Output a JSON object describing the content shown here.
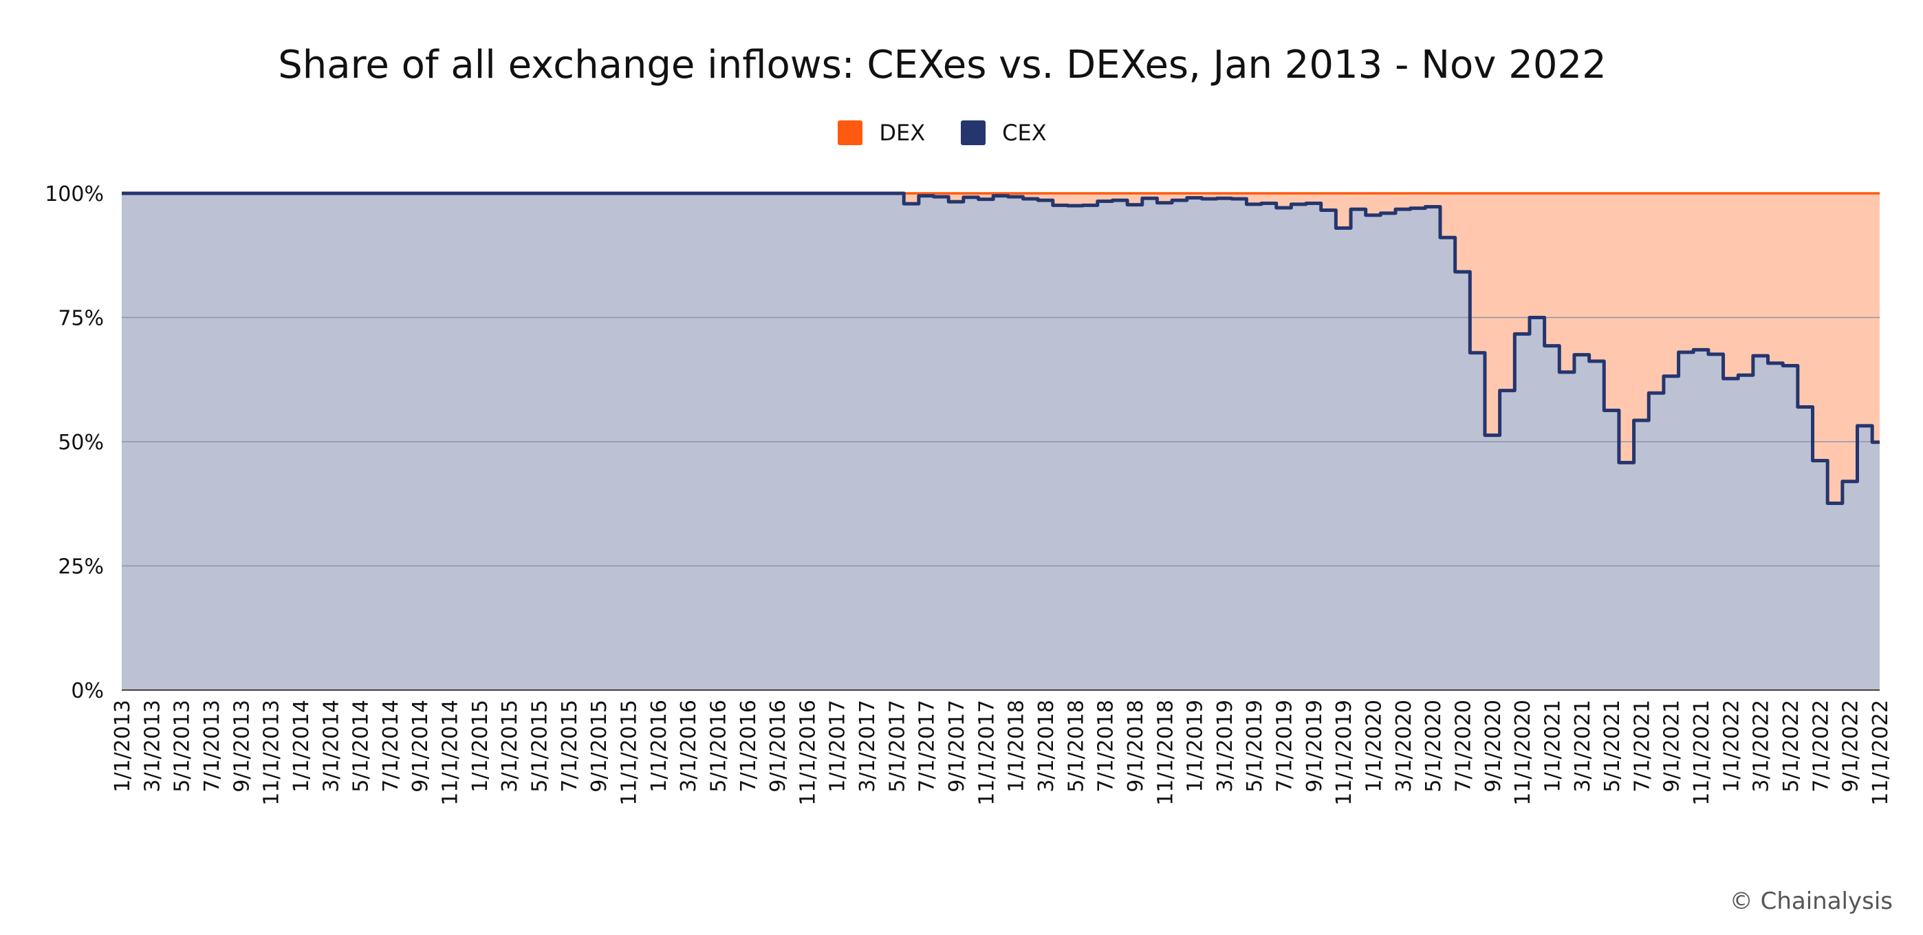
{
  "chart_data": {
    "type": "area",
    "title": "Share of all exchange inflows: CEXes vs. DEXes, Jan 2013 - Nov 2022",
    "xlabel": "",
    "ylabel": "",
    "ylim": [
      0,
      100
    ],
    "y_ticks": [
      "0%",
      "25%",
      "50%",
      "75%",
      "100%"
    ],
    "y_tick_values": [
      0,
      25,
      50,
      75,
      100
    ],
    "stacked": true,
    "step": true,
    "grid": true,
    "legend_position": "top-center",
    "x": [
      "1/1/2013",
      "2/1/2013",
      "3/1/2013",
      "4/1/2013",
      "5/1/2013",
      "6/1/2013",
      "7/1/2013",
      "8/1/2013",
      "9/1/2013",
      "10/1/2013",
      "11/1/2013",
      "12/1/2013",
      "1/1/2014",
      "2/1/2014",
      "3/1/2014",
      "4/1/2014",
      "5/1/2014",
      "6/1/2014",
      "7/1/2014",
      "8/1/2014",
      "9/1/2014",
      "10/1/2014",
      "11/1/2014",
      "12/1/2014",
      "1/1/2015",
      "2/1/2015",
      "3/1/2015",
      "4/1/2015",
      "5/1/2015",
      "6/1/2015",
      "7/1/2015",
      "8/1/2015",
      "9/1/2015",
      "10/1/2015",
      "11/1/2015",
      "12/1/2015",
      "1/1/2016",
      "2/1/2016",
      "3/1/2016",
      "4/1/2016",
      "5/1/2016",
      "6/1/2016",
      "7/1/2016",
      "8/1/2016",
      "9/1/2016",
      "10/1/2016",
      "11/1/2016",
      "12/1/2016",
      "1/1/2017",
      "2/1/2017",
      "3/1/2017",
      "4/1/2017",
      "5/1/2017",
      "6/1/2017",
      "7/1/2017",
      "8/1/2017",
      "9/1/2017",
      "10/1/2017",
      "11/1/2017",
      "12/1/2017",
      "1/1/2018",
      "2/1/2018",
      "3/1/2018",
      "4/1/2018",
      "5/1/2018",
      "6/1/2018",
      "7/1/2018",
      "8/1/2018",
      "9/1/2018",
      "10/1/2018",
      "11/1/2018",
      "12/1/2018",
      "1/1/2019",
      "2/1/2019",
      "3/1/2019",
      "4/1/2019",
      "5/1/2019",
      "6/1/2019",
      "7/1/2019",
      "8/1/2019",
      "9/1/2019",
      "10/1/2019",
      "11/1/2019",
      "12/1/2019",
      "1/1/2020",
      "2/1/2020",
      "3/1/2020",
      "4/1/2020",
      "5/1/2020",
      "6/1/2020",
      "7/1/2020",
      "8/1/2020",
      "9/1/2020",
      "10/1/2020",
      "11/1/2020",
      "12/1/2020",
      "1/1/2021",
      "2/1/2021",
      "3/1/2021",
      "4/1/2021",
      "5/1/2021",
      "6/1/2021",
      "7/1/2021",
      "8/1/2021",
      "9/1/2021",
      "10/1/2021",
      "11/1/2021",
      "12/1/2021",
      "1/1/2022",
      "2/1/2022",
      "3/1/2022",
      "4/1/2022",
      "5/1/2022",
      "6/1/2022",
      "7/1/2022",
      "8/1/2022",
      "9/1/2022",
      "10/1/2022",
      "11/1/2022"
    ],
    "x_tick_labels": [
      "1/1/2013",
      "3/1/2013",
      "5/1/2013",
      "7/1/2013",
      "9/1/2013",
      "11/1/2013",
      "1/1/2014",
      "3/1/2014",
      "5/1/2014",
      "7/1/2014",
      "9/1/2014",
      "11/1/2014",
      "1/1/2015",
      "3/1/2015",
      "5/1/2015",
      "7/1/2015",
      "9/1/2015",
      "11/1/2015",
      "1/1/2016",
      "3/1/2016",
      "5/1/2016",
      "7/1/2016",
      "9/1/2016",
      "11/1/2016",
      "1/1/2017",
      "3/1/2017",
      "5/1/2017",
      "7/1/2017",
      "9/1/2017",
      "11/1/2017",
      "1/1/2018",
      "3/1/2018",
      "5/1/2018",
      "7/1/2018",
      "9/1/2018",
      "11/1/2018",
      "1/1/2019",
      "3/1/2019",
      "5/1/2019",
      "7/1/2019",
      "9/1/2019",
      "11/1/2019",
      "1/1/2020",
      "3/1/2020",
      "5/1/2020",
      "7/1/2020",
      "9/1/2020",
      "11/1/2020",
      "1/1/2021",
      "3/1/2021",
      "5/1/2021",
      "7/1/2021",
      "9/1/2021",
      "11/1/2021",
      "1/1/2022",
      "3/1/2022",
      "5/1/2022",
      "7/1/2022",
      "9/1/2022",
      "11/1/2022"
    ],
    "series": [
      {
        "name": "CEX",
        "color": "#25356e",
        "fill": "#bcc1d3",
        "values": [
          100,
          100,
          100,
          100,
          100,
          100,
          100,
          100,
          100,
          100,
          100,
          100,
          100,
          100,
          100,
          100,
          100,
          100,
          100,
          100,
          100,
          100,
          100,
          100,
          100,
          100,
          100,
          100,
          100,
          100,
          100,
          100,
          100,
          100,
          100,
          100,
          100,
          100,
          100,
          100,
          100,
          100,
          100,
          100,
          100,
          100,
          100,
          100,
          100,
          100,
          100,
          100,
          100,
          97.9,
          99.5,
          99.3,
          98.3,
          99.2,
          98.8,
          99.5,
          99.3,
          98.9,
          98.6,
          97.6,
          97.5,
          97.6,
          98.4,
          98.6,
          97.7,
          99.0,
          98.1,
          98.6,
          99.1,
          98.9,
          99.0,
          98.9,
          97.8,
          98.0,
          97.1,
          97.8,
          98.0,
          96.6,
          93.0,
          96.8,
          95.6,
          96.0,
          96.8,
          97.0,
          97.3,
          91.1,
          84.2,
          67.9,
          51.3,
          60.3,
          71.7,
          75.0,
          69.3,
          64.0,
          67.5,
          66.2,
          56.3,
          45.8,
          54.3,
          59.8,
          63.2,
          68.0,
          68.5,
          67.6,
          62.7,
          63.4,
          67.3,
          65.8,
          65.3,
          57.0,
          46.2,
          37.6,
          42.0,
          53.2,
          49.9
        ]
      },
      {
        "name": "DEX",
        "color": "#ff5a0f",
        "fill": "#ffc8ae",
        "values": [
          0,
          0,
          0,
          0,
          0,
          0,
          0,
          0,
          0,
          0,
          0,
          0,
          0,
          0,
          0,
          0,
          0,
          0,
          0,
          0,
          0,
          0,
          0,
          0,
          0,
          0,
          0,
          0,
          0,
          0,
          0,
          0,
          0,
          0,
          0,
          0,
          0,
          0,
          0,
          0,
          0,
          0,
          0,
          0,
          0,
          0,
          0,
          0,
          0,
          0,
          0,
          0,
          0,
          2.1,
          0.5,
          0.7,
          1.7,
          0.8,
          1.2,
          0.5,
          0.7,
          1.1,
          1.4,
          2.4,
          2.5,
          2.4,
          1.6,
          1.4,
          2.3,
          1.0,
          1.9,
          1.4,
          0.9,
          1.1,
          1.0,
          1.1,
          2.2,
          2.0,
          2.9,
          2.2,
          2.0,
          3.4,
          7.0,
          3.2,
          4.4,
          4.0,
          3.2,
          3.0,
          2.7,
          8.9,
          15.8,
          32.1,
          48.7,
          39.7,
          28.3,
          25.0,
          30.7,
          36.0,
          32.5,
          33.8,
          43.7,
          54.2,
          45.7,
          40.2,
          36.8,
          32.0,
          31.5,
          32.4,
          37.3,
          36.6,
          32.7,
          34.2,
          34.7,
          43.0,
          53.8,
          62.4,
          58.0,
          46.8,
          50.1
        ]
      }
    ]
  },
  "legend": [
    {
      "label": "DEX",
      "color": "#ff5a0f"
    },
    {
      "label": "CEX",
      "color": "#25356e"
    }
  ],
  "watermark": "© Chainalysis"
}
